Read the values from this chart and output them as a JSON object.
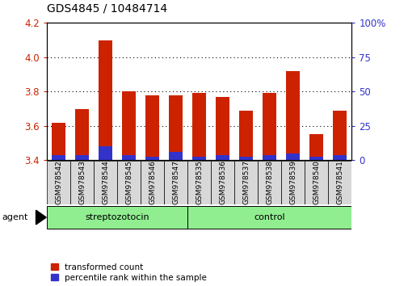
{
  "title": "GDS4845 / 10484714",
  "categories": [
    "GSM978542",
    "GSM978543",
    "GSM978544",
    "GSM978545",
    "GSM978546",
    "GSM978547",
    "GSM978535",
    "GSM978536",
    "GSM978537",
    "GSM978538",
    "GSM978539",
    "GSM978540",
    "GSM978541"
  ],
  "red_values": [
    3.62,
    3.7,
    4.1,
    3.8,
    3.78,
    3.78,
    3.79,
    3.77,
    3.69,
    3.79,
    3.92,
    3.55,
    3.69
  ],
  "blue_values": [
    3.43,
    3.43,
    3.48,
    3.43,
    3.42,
    3.45,
    3.42,
    3.43,
    3.42,
    3.43,
    3.44,
    3.42,
    3.43
  ],
  "ylim": [
    3.4,
    4.2
  ],
  "yticks_left": [
    3.4,
    3.6,
    3.8,
    4.0,
    4.2
  ],
  "yticks_right": [
    0,
    25,
    50,
    75,
    100
  ],
  "group_separator_index": 6,
  "red_color": "#CC2200",
  "blue_color": "#3333CC",
  "bar_width": 0.6,
  "background_color": "#ffffff",
  "plot_bg_color": "#ffffff",
  "tick_label_bg": "#d8d8d8",
  "green_color": "#90EE90",
  "agent_label": "agent",
  "legend_red": "transformed count",
  "legend_blue": "percentile rank within the sample",
  "title_fontsize": 10,
  "axis_label_color_left": "#CC2200",
  "axis_label_color_right": "#3333CC",
  "group_labels": [
    "streptozotocin",
    "control"
  ],
  "n_strep": 6,
  "n_ctrl": 7
}
